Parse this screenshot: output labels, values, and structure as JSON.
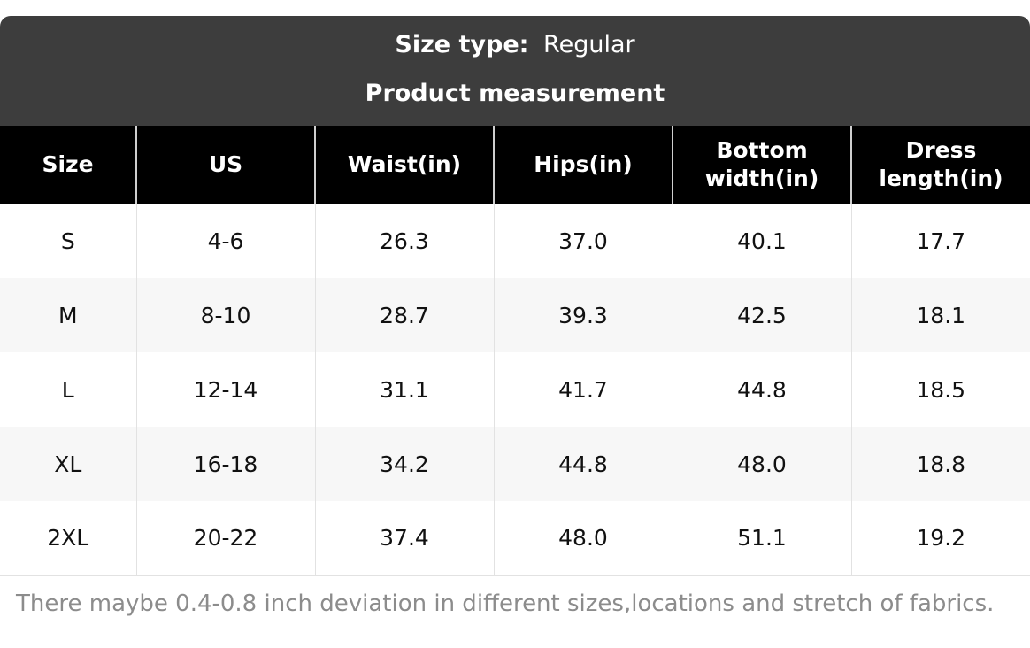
{
  "header": {
    "size_type_label": "Size type:",
    "size_type_value": "Regular",
    "subtitle": "Product measurement"
  },
  "table": {
    "columns": [
      "Size",
      "US",
      "Waist(in)",
      "Hips(in)",
      "Bottom width(in)",
      "Dress length(in)"
    ],
    "rows": [
      [
        "S",
        "4-6",
        "26.3",
        "37.0",
        "40.1",
        "17.7"
      ],
      [
        "M",
        "8-10",
        "28.7",
        "39.3",
        "42.5",
        "18.1"
      ],
      [
        "L",
        "12-14",
        "31.1",
        "41.7",
        "44.8",
        "18.5"
      ],
      [
        "XL",
        "16-18",
        "34.2",
        "44.8",
        "48.0",
        "18.8"
      ],
      [
        "2XL",
        "20-22",
        "37.4",
        "48.0",
        "51.1",
        "19.2"
      ]
    ]
  },
  "footer": {
    "note": "There maybe 0.4-0.8 inch deviation in different sizes,locations and stretch of fabrics."
  },
  "colors": {
    "header_bg": "#3d3d3d",
    "thead_bg": "#000000",
    "row_alt_bg": "#f7f7f7",
    "note_color": "#8c8c8c"
  }
}
